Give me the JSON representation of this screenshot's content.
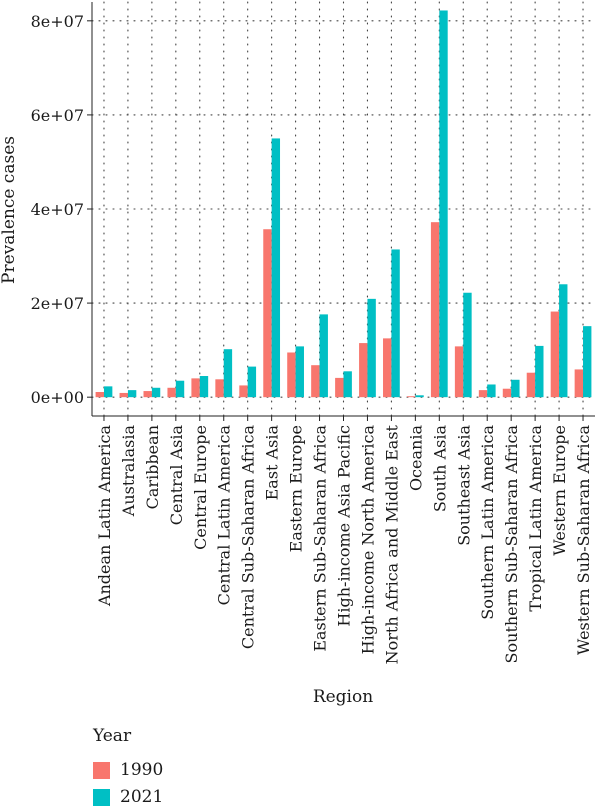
{
  "chart_data": {
    "type": "bar",
    "xlabel": "Region",
    "ylabel": "Prevalence cases",
    "ylim": [
      -4000000,
      84000000
    ],
    "yticks": [
      0,
      20000000,
      40000000,
      60000000,
      80000000
    ],
    "ytick_labels": [
      "0e+00",
      "2e+07",
      "4e+07",
      "6e+07",
      "8e+07"
    ],
    "grid": "dotted",
    "legend_position": "bottom-left",
    "legend_title": "Year",
    "categories": [
      "Andean Latin America",
      "Australasia",
      "Caribbean",
      "Central Asia",
      "Central Europe",
      "Central Latin America",
      "Central Sub-Saharan Africa",
      "East Asia",
      "Eastern Europe",
      "Eastern Sub-Saharan Africa",
      "High-income Asia Pacific",
      "High-income North America",
      "North Africa and Middle East",
      "Oceania",
      "South Asia",
      "Southeast Asia",
      "Southern Latin America",
      "Southern Sub-Saharan Africa",
      "Tropical Latin America",
      "Western Europe",
      "Western Sub-Saharan Africa"
    ],
    "series": [
      {
        "name": "1990",
        "color": "#F8766D",
        "values": [
          1100000,
          900000,
          1300000,
          2000000,
          4000000,
          3800000,
          2500000,
          35700000,
          9500000,
          6800000,
          4100000,
          11500000,
          12500000,
          200000,
          37200000,
          10800000,
          1500000,
          1800000,
          5200000,
          18200000,
          5900000
        ]
      },
      {
        "name": "2021",
        "color": "#00BFC4",
        "values": [
          2300000,
          1500000,
          2000000,
          3500000,
          4500000,
          10200000,
          6500000,
          55000000,
          10800000,
          17600000,
          5500000,
          20900000,
          31400000,
          400000,
          82200000,
          22200000,
          2700000,
          3700000,
          10900000,
          24000000,
          15100000
        ]
      }
    ]
  }
}
